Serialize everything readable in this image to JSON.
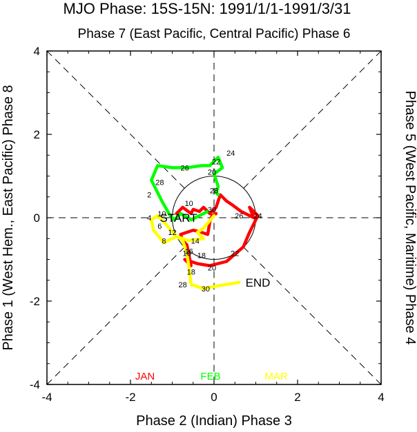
{
  "chart_data": {
    "type": "line",
    "title": "MJO Phase: 15S-15N: 1991/1/1-1991/3/31",
    "top_label": "Phase 7 (East Pacific, Central Pacific) Phase 6",
    "xlabel": "Phase 2 (Indian) Phase 3",
    "left_label": "Phase 1 (West Hem., East Pacific) Phase 8",
    "right_label": "Phase 5 (West Pacific, Maritime) Phase 4",
    "xlim": [
      -4,
      4
    ],
    "ylim": [
      -4,
      4
    ],
    "xticks": [
      "-4",
      "-2",
      "0",
      "2",
      "4"
    ],
    "yticks": [
      "-4",
      "-2",
      "0",
      "2",
      "4"
    ],
    "start_label": "START",
    "end_label": "END",
    "legend": [
      {
        "label": "JAN",
        "color": "#ff0000"
      },
      {
        "label": "FEB",
        "color": "#00ff00"
      },
      {
        "label": "MAR",
        "color": "#ffff00"
      }
    ],
    "series": [
      {
        "name": "JAN",
        "color": "#ff0000",
        "points": [
          [
            -0.9,
            0.1
          ],
          [
            -0.75,
            0.25
          ],
          [
            -0.55,
            0.1
          ],
          [
            -0.5,
            0.2
          ],
          [
            -0.35,
            0.15
          ],
          [
            -0.25,
            0.25
          ],
          [
            -0.1,
            0.1
          ],
          [
            0.05,
            0.25
          ],
          [
            0.15,
            0.55
          ],
          [
            0.3,
            0.4
          ],
          [
            0.45,
            0.3
          ],
          [
            0.65,
            0.15
          ],
          [
            0.95,
            0.0
          ],
          [
            0.85,
            0.25
          ],
          [
            1.05,
            0.05
          ],
          [
            0.85,
            -0.35
          ],
          [
            0.7,
            -0.7
          ],
          [
            0.3,
            -1.05
          ],
          [
            -0.1,
            -1.15
          ],
          [
            -0.4,
            -1.1
          ],
          [
            -0.7,
            -1.0
          ],
          [
            -0.55,
            -1.15
          ],
          [
            -0.65,
            -0.65
          ],
          [
            -0.75,
            -0.55
          ],
          [
            -0.8,
            -0.4
          ],
          [
            -0.5,
            -0.3
          ],
          [
            -0.3,
            -0.35
          ],
          [
            -0.15,
            -0.4
          ],
          [
            -0.1,
            -0.1
          ],
          [
            -0.05,
            0.05
          ],
          [
            0.05,
            0.1
          ]
        ],
        "labels": [
          {
            "day": "10",
            "x": -0.6,
            "y": 0.35
          },
          {
            "day": "28",
            "x": 0.0,
            "y": 0.65
          },
          {
            "day": "30",
            "x": -0.05,
            "y": 0.2
          },
          {
            "day": "26",
            "x": 0.6,
            "y": 0.05
          },
          {
            "day": "24",
            "x": 1.05,
            "y": 0.05
          },
          {
            "day": "22",
            "x": 0.5,
            "y": -0.85
          },
          {
            "day": "20",
            "x": -0.05,
            "y": -1.2
          },
          {
            "day": "18",
            "x": -0.3,
            "y": -0.9
          },
          {
            "day": "16",
            "x": -0.65,
            "y": -0.85
          }
        ]
      },
      {
        "name": "FEB",
        "color": "#00ff00",
        "points": [
          [
            -0.15,
            0.15
          ],
          [
            -0.35,
            0.05
          ],
          [
            -0.55,
            -0.05
          ],
          [
            -0.8,
            0.1
          ],
          [
            -0.95,
            -0.05
          ],
          [
            -1.05,
            0.05
          ],
          [
            -1.25,
            0.4
          ],
          [
            -1.5,
            0.9
          ],
          [
            -1.35,
            1.25
          ],
          [
            -1.0,
            1.2
          ],
          [
            -0.65,
            1.2
          ],
          [
            -0.3,
            1.25
          ],
          [
            -0.1,
            1.25
          ],
          [
            0.1,
            1.45
          ],
          [
            0.2,
            1.2
          ],
          [
            0.0,
            1.05
          ],
          [
            0.1,
            0.75
          ],
          [
            0.05,
            0.6
          ],
          [
            0.1,
            0.55
          ]
        ],
        "labels": [
          {
            "day": "2",
            "x": -1.55,
            "y": 0.55
          },
          {
            "day": "28",
            "x": -1.3,
            "y": 0.85
          },
          {
            "day": "26",
            "x": -0.7,
            "y": 1.2
          },
          {
            "day": "20",
            "x": -0.05,
            "y": 1.1
          },
          {
            "day": "22",
            "x": 0.05,
            "y": 1.35
          },
          {
            "day": "24",
            "x": 0.4,
            "y": 1.55
          }
        ]
      },
      {
        "name": "MAR",
        "color": "#ffff00",
        "points": [
          [
            0.0,
            0.05
          ],
          [
            -0.25,
            -0.25
          ],
          [
            -0.4,
            -0.35
          ],
          [
            -0.25,
            -0.5
          ],
          [
            -0.6,
            -0.55
          ],
          [
            -0.9,
            -0.45
          ],
          [
            -1.2,
            -0.6
          ],
          [
            -1.45,
            -0.3
          ],
          [
            -1.5,
            -0.05
          ],
          [
            -1.35,
            0.05
          ],
          [
            -1.2,
            -0.1
          ],
          [
            -0.95,
            -0.4
          ],
          [
            -0.75,
            -0.55
          ],
          [
            -0.65,
            -0.85
          ],
          [
            -0.6,
            -1.2
          ],
          [
            -0.55,
            -1.6
          ],
          [
            -0.25,
            -1.7
          ],
          [
            0.0,
            -1.65
          ],
          [
            0.3,
            -1.6
          ],
          [
            0.6,
            -1.55
          ]
        ],
        "labels": [
          {
            "day": "4",
            "x": -1.55,
            "y": 0.0
          },
          {
            "day": "10",
            "x": -1.25,
            "y": 0.1
          },
          {
            "day": "6",
            "x": -1.3,
            "y": -0.2
          },
          {
            "day": "8",
            "x": -1.2,
            "y": -0.55
          },
          {
            "day": "12",
            "x": -1.0,
            "y": -0.35
          },
          {
            "day": "14",
            "x": -0.45,
            "y": -0.55
          },
          {
            "day": "16",
            "x": -0.6,
            "y": -0.8
          },
          {
            "day": "18",
            "x": -0.55,
            "y": -1.3
          },
          {
            "day": "28",
            "x": -0.75,
            "y": -1.6
          },
          {
            "day": "30",
            "x": -0.2,
            "y": -1.7
          }
        ]
      }
    ]
  }
}
